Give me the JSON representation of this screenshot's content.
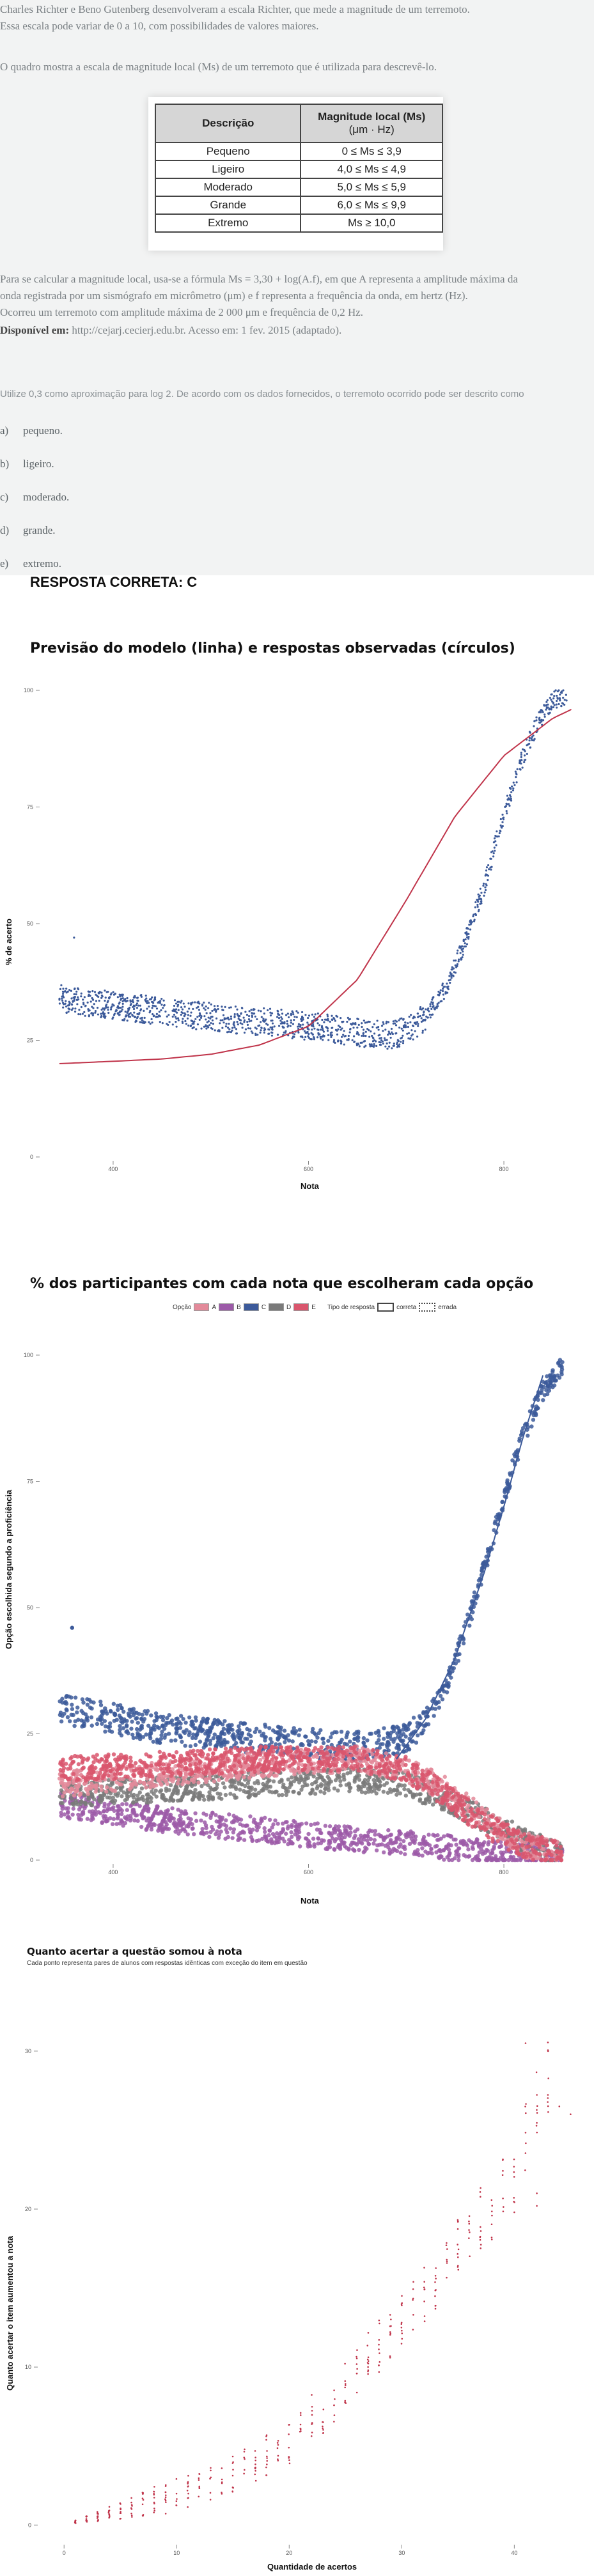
{
  "question": {
    "lead_line1": "Charles Richter e Beno Gutenberg desenvolveram a escala Richter, que mede a magnitude de um terremoto.",
    "lead_line2": "Essa escala pode variar de 0 a 10, com possibilidades de valores maiores.",
    "intro": "O quadro mostra a escala de magnitude local (Ms) de um terremoto que é utilizada para descrevê-lo.",
    "table": {
      "col1_header": "Descrição",
      "col2_header": "Magnitude local (Ms)",
      "col2_unit": "(μm · Hz)",
      "rows": [
        {
          "desc": "Pequeno",
          "range": "0 ≤ Ms ≤ 3,9"
        },
        {
          "desc": "Ligeiro",
          "range": "4,0 ≤ Ms ≤ 4,9"
        },
        {
          "desc": "Moderado",
          "range": "5,0 ≤ Ms ≤ 5,9"
        },
        {
          "desc": "Grande",
          "range": "6,0 ≤ Ms ≤ 9,9"
        },
        {
          "desc": "Extremo",
          "range": "Ms ≥ 10,0"
        }
      ]
    },
    "formula_line1": "Para se calcular a magnitude local, usa-se a fórmula Ms = 3,30 + log(A.f), em que A representa a amplitude máxima da",
    "formula_line2": "onda registrada por um sismógrafo em micrômetro (μm) e f representa a frequência da onda, em hertz (Hz).",
    "formula_line3": "Ocorreu um terremoto com amplitude máxima de 2 000 μm e frequência de 0,2 Hz.",
    "source_label": "Disponível em:",
    "source_text": " http://cejarj.cecierj.edu.br. Acesso em: 1 fev. 2015 (adaptado).",
    "prompt": "Utilize 0,3 como aproximação para log 2. De acordo com os dados fornecidos, o terremoto ocorrido pode ser descrito como",
    "options": [
      {
        "letter": "a)",
        "text": "pequeno."
      },
      {
        "letter": "b)",
        "text": "ligeiro."
      },
      {
        "letter": "c)",
        "text": "moderado."
      },
      {
        "letter": "d)",
        "text": "grande."
      },
      {
        "letter": "e)",
        "text": "extremo."
      }
    ],
    "answer": "RESPOSTA CORRETA: C"
  },
  "chart_data": [
    {
      "type": "scatter",
      "title": "Previsão do modelo (linha) e respostas observadas (círculos)",
      "xlabel": "Nota",
      "ylabel": "% de acerto",
      "x_ticks": [
        "400",
        "600",
        "800"
      ],
      "y_ticks": [
        "0",
        "25",
        "50",
        "75",
        "100"
      ],
      "xlim": [
        330,
        870
      ],
      "ylim": [
        0,
        100
      ],
      "series": [
        {
          "color": "#3c5a9a",
          "kind": "points",
          "points": [
            [
              345,
              34
            ],
            [
              360,
              33.5
            ],
            [
              380,
              33
            ],
            [
              400,
              32.5
            ],
            [
              420,
              32
            ],
            [
              440,
              31.5
            ],
            [
              460,
              31
            ],
            [
              480,
              30.5
            ],
            [
              500,
              30
            ],
            [
              520,
              29.5
            ],
            [
              540,
              29
            ],
            [
              560,
              29
            ],
            [
              580,
              28.5
            ],
            [
              600,
              28
            ],
            [
              620,
              27.5
            ],
            [
              640,
              27
            ],
            [
              660,
              26.5
            ],
            [
              680,
              26
            ],
            [
              700,
              27
            ],
            [
              720,
              30
            ],
            [
              740,
              36
            ],
            [
              760,
              46
            ],
            [
              780,
              58
            ],
            [
              790,
              66
            ],
            [
              800,
              73
            ],
            [
              810,
              80
            ],
            [
              820,
              86
            ],
            [
              830,
              91
            ],
            [
              840,
              95
            ],
            [
              850,
              98
            ],
            [
              865,
              99
            ]
          ]
        },
        {
          "color": "#c0344a",
          "kind": "line",
          "points": [
            [
              345,
              20
            ],
            [
              400,
              20.5
            ],
            [
              450,
              21
            ],
            [
              500,
              22
            ],
            [
              550,
              24
            ],
            [
              600,
              28
            ],
            [
              650,
              38
            ],
            [
              700,
              55
            ],
            [
              750,
              73
            ],
            [
              800,
              86
            ],
            [
              850,
              94
            ],
            [
              870,
              96
            ]
          ]
        }
      ],
      "outliers": [
        [
          360,
          47
        ]
      ]
    },
    {
      "type": "scatter",
      "title": "% dos participantes com cada nota que escolheram cada opção",
      "xlabel": "Nota",
      "ylabel": "Opção escolhida segundo a proficiência",
      "x_ticks": [
        "400",
        "600",
        "800"
      ],
      "y_ticks": [
        "0",
        "25",
        "50",
        "75",
        "100"
      ],
      "xlim": [
        330,
        870
      ],
      "ylim": [
        0,
        100
      ],
      "legend": {
        "option_label": "Opção",
        "options": [
          {
            "name": "A",
            "color": "#e38a9a"
          },
          {
            "name": "B",
            "color": "#9c5aa8"
          },
          {
            "name": "C",
            "color": "#3c5a9a"
          },
          {
            "name": "D",
            "color": "#7a7a7a"
          },
          {
            "name": "E",
            "color": "#d9566d"
          }
        ],
        "type_label": "Tipo de resposta",
        "types": [
          "correta",
          "errada"
        ]
      },
      "series": [
        {
          "name": "C",
          "color": "#3c5a9a",
          "points": [
            [
              345,
              30
            ],
            [
              400,
              28
            ],
            [
              450,
              26
            ],
            [
              500,
              25
            ],
            [
              550,
              24
            ],
            [
              600,
              23
            ],
            [
              650,
              22.5
            ],
            [
              700,
              24
            ],
            [
              720,
              28
            ],
            [
              740,
              34
            ],
            [
              760,
              45
            ],
            [
              780,
              58
            ],
            [
              800,
              72
            ],
            [
              820,
              84
            ],
            [
              840,
              93
            ],
            [
              860,
              98
            ]
          ]
        },
        {
          "name": "A",
          "color": "#e38a9a",
          "points": [
            [
              345,
              15
            ],
            [
              400,
              16
            ],
            [
              450,
              17
            ],
            [
              500,
              18
            ],
            [
              550,
              19
            ],
            [
              600,
              19.5
            ],
            [
              650,
              20
            ],
            [
              700,
              18
            ],
            [
              740,
              14
            ],
            [
              780,
              8
            ],
            [
              820,
              3
            ],
            [
              860,
              1
            ]
          ]
        },
        {
          "name": "E",
          "color": "#d9566d",
          "points": [
            [
              345,
              18
            ],
            [
              400,
              18.5
            ],
            [
              450,
              19
            ],
            [
              500,
              19.5
            ],
            [
              550,
              20
            ],
            [
              600,
              20
            ],
            [
              650,
              20
            ],
            [
              700,
              18
            ],
            [
              740,
              13
            ],
            [
              780,
              7
            ],
            [
              820,
              3
            ],
            [
              860,
              1
            ]
          ]
        },
        {
          "name": "D",
          "color": "#7a7a7a",
          "points": [
            [
              345,
              13
            ],
            [
              400,
              13.5
            ],
            [
              450,
              14
            ],
            [
              500,
              14.5
            ],
            [
              550,
              15
            ],
            [
              600,
              15.5
            ],
            [
              650,
              16
            ],
            [
              700,
              15
            ],
            [
              740,
              12
            ],
            [
              780,
              8
            ],
            [
              820,
              4
            ],
            [
              860,
              1
            ]
          ]
        },
        {
          "name": "B",
          "color": "#9c5aa8",
          "points": [
            [
              345,
              11
            ],
            [
              400,
              9.5
            ],
            [
              450,
              8
            ],
            [
              500,
              7
            ],
            [
              550,
              6
            ],
            [
              600,
              5
            ],
            [
              650,
              4
            ],
            [
              700,
              3.5
            ],
            [
              740,
              2.5
            ],
            [
              780,
              1.5
            ],
            [
              820,
              1
            ],
            [
              860,
              0.5
            ]
          ]
        }
      ],
      "line": {
        "color": "#3c5a9a",
        "points": [
          [
            690,
            20
          ],
          [
            720,
            28
          ],
          [
            750,
            40
          ],
          [
            780,
            57
          ],
          [
            800,
            70
          ],
          [
            820,
            84
          ],
          [
            840,
            96
          ]
        ]
      },
      "outliers": [
        [
          358,
          46
        ]
      ]
    },
    {
      "type": "scatter",
      "title": "Quanto acertar a questão somou à nota",
      "subtitle": "Cada ponto representa pares de alunos com respostas idênticas com exceção do item em questão",
      "xlabel": "Quantidade de acertos",
      "ylabel": "Quanto acertar o item aumentou a nota",
      "x_ticks": [
        "0",
        "10",
        "20",
        "30",
        "40"
      ],
      "y_ticks": [
        "0",
        "10",
        "20",
        "30"
      ],
      "xlim": [
        -2,
        46
      ],
      "ylim": [
        -1,
        34
      ],
      "color": "#c0344a",
      "columns": [
        [
          1,
          0.1,
          0.3
        ],
        [
          2,
          0.2,
          0.6
        ],
        [
          3,
          0.2,
          0.9
        ],
        [
          4,
          0.3,
          1.2
        ],
        [
          5,
          0.3,
          1.5
        ],
        [
          6,
          0.4,
          1.8
        ],
        [
          7,
          0.5,
          2.1
        ],
        [
          8,
          0.6,
          2.5
        ],
        [
          9,
          0.7,
          2.8
        ],
        [
          10,
          0.8,
          3.1
        ],
        [
          11,
          1.0,
          3.4
        ],
        [
          12,
          1.2,
          3.7
        ],
        [
          13,
          1.5,
          4.0
        ],
        [
          14,
          1.8,
          4.2
        ],
        [
          15,
          2.0,
          4.6
        ],
        [
          16,
          2.3,
          5.0
        ],
        [
          17,
          2.6,
          5.4
        ],
        [
          18,
          3.0,
          5.8
        ],
        [
          19,
          3.4,
          6.2
        ],
        [
          20,
          3.8,
          6.6
        ],
        [
          21,
          4.5,
          7.6
        ],
        [
          22,
          5.0,
          8.3
        ],
        [
          23,
          5.8,
          9.0
        ],
        [
          24,
          6.5,
          9.8
        ],
        [
          25,
          7.2,
          10.6
        ],
        [
          26,
          8.0,
          11.4
        ],
        [
          27,
          8.8,
          12.2
        ],
        [
          28,
          9.6,
          13.0
        ],
        [
          29,
          10.4,
          13.8
        ],
        [
          30,
          11.2,
          14.6
        ],
        [
          31,
          12.0,
          15.5
        ],
        [
          32,
          12.8,
          16.4
        ],
        [
          33,
          13.6,
          17.4
        ],
        [
          34,
          14.4,
          18.4
        ],
        [
          35,
          15.2,
          19.4
        ],
        [
          36,
          16.0,
          20.4
        ],
        [
          37,
          17.0,
          21.4
        ],
        [
          38,
          18.0,
          22.4
        ],
        [
          39,
          19.0,
          23.4
        ],
        [
          40,
          20.0,
          24.5
        ],
        [
          41,
          22.0,
          27.0
        ],
        [
          42,
          24.0,
          29.0
        ],
        [
          43,
          26.0,
          31.0
        ]
      ],
      "stray": [
        [
          40,
          19.8
        ],
        [
          42,
          20.2
        ],
        [
          44,
          26.5
        ],
        [
          45,
          26
        ],
        [
          41,
          30.5
        ],
        [
          43,
          30
        ],
        [
          42,
          21
        ]
      ]
    }
  ]
}
